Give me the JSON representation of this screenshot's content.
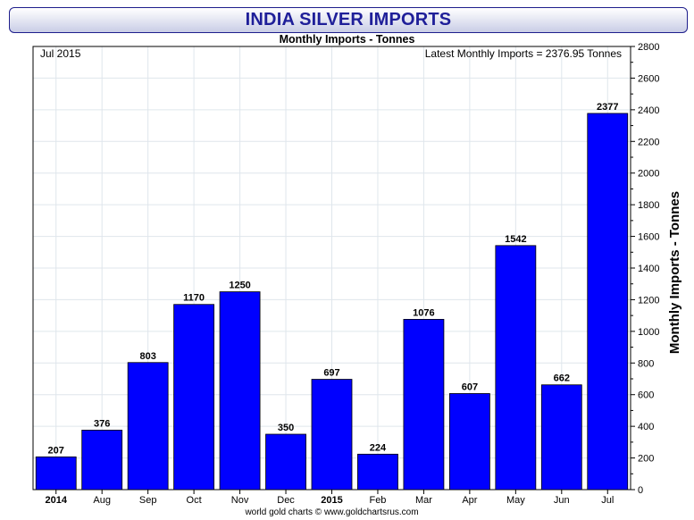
{
  "chart_data": {
    "type": "bar",
    "title": "INDIA SILVER IMPORTS",
    "subtitle": "Monthly Imports - Tonnes",
    "ylabel": "Monthly Imports - Tonnes",
    "xlabel": "",
    "corner_left": "Jul 2015",
    "corner_right": "Latest Monthly Imports = 2376.95 Tonnes",
    "credit": "world gold charts © www.goldchartsrus.com",
    "categories": [
      "Jul 2014",
      "Aug",
      "Sep",
      "Oct",
      "Nov",
      "Dec",
      "Jan 2015",
      "Feb",
      "Mar",
      "Apr",
      "May",
      "Jun",
      "Jul"
    ],
    "x_tick_labels": [
      "2014",
      "Aug",
      "Sep",
      "Oct",
      "Nov",
      "Dec",
      "2015",
      "Feb",
      "Mar",
      "Apr",
      "May",
      "Jun",
      "Jul"
    ],
    "x_tick_bold": [
      true,
      false,
      false,
      false,
      false,
      false,
      true,
      false,
      false,
      false,
      false,
      false,
      false
    ],
    "values": [
      207,
      376,
      803,
      1170,
      1250,
      350,
      697,
      224,
      1076,
      607,
      1542,
      662,
      2377
    ],
    "value_labels": [
      "207",
      "376",
      "803",
      "1170",
      "1250",
      "350",
      "697",
      "224",
      "1076",
      "607",
      "1542",
      "662",
      "2377"
    ],
    "ylim": [
      0,
      2800
    ],
    "y_ticks": [
      0,
      200,
      400,
      600,
      800,
      1000,
      1200,
      1400,
      1600,
      1800,
      2000,
      2200,
      2400,
      2600,
      2800
    ],
    "y_axis_side": "right",
    "grid": true,
    "bar_color": "#0000ff",
    "title_color": "#1f1f99"
  }
}
